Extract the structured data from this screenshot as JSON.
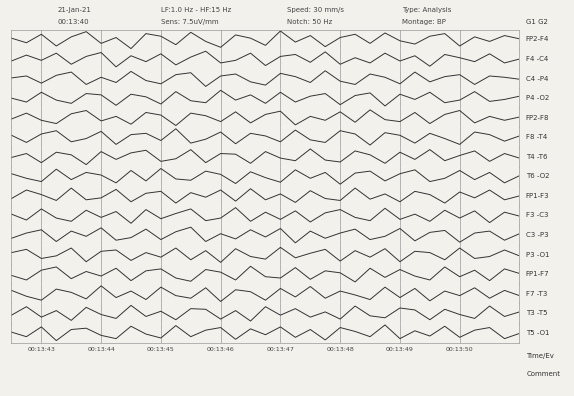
{
  "header": {
    "rows": [
      [
        "21-Jan-21",
        "LF:1.0 Hz - HF:15 Hz",
        "Speed: 30 mm/s",
        "Type: Analysis"
      ],
      [
        "00:13:40",
        "Sens: 7.5uV/mm",
        "Notch: 50 Hz",
        "Montage: BP"
      ]
    ]
  },
  "side_labels": {
    "top": "G1 G2",
    "bottom": [
      "Time/Ev",
      "Comment"
    ]
  },
  "chart_data": {
    "type": "line",
    "grid": true,
    "tick_labels": "x",
    "color": "#333333",
    "x": [
      0,
      0.25,
      0.5,
      0.75,
      1,
      1.25,
      1.5,
      1.75,
      2,
      2.25,
      2.5,
      2.75,
      3,
      3.25,
      3.5,
      3.75,
      4,
      4.25,
      4.5,
      4.75,
      5,
      5.25,
      5.5,
      5.75,
      6,
      6.25,
      6.5,
      6.75,
      7,
      7.25,
      7.5,
      7.75,
      8,
      8.25,
      8.5
    ],
    "xlim": [
      0,
      8.5
    ],
    "xticks": [
      {
        "value": 0.5,
        "label": "00:13:43"
      },
      {
        "value": 1.5,
        "label": "00:13:44"
      },
      {
        "value": 2.5,
        "label": "00:13:45"
      },
      {
        "value": 3.5,
        "label": "00:13:46"
      },
      {
        "value": 4.5,
        "label": "00:13:47"
      },
      {
        "value": 5.5,
        "label": "00:13:48"
      },
      {
        "value": 6.5,
        "label": "00:13:49"
      },
      {
        "value": 7.5,
        "label": "00:13:50"
      }
    ],
    "ylim": [
      -15,
      15
    ],
    "yticks": [],
    "series": [
      {
        "name": "FP2-F4",
        "values": [
          2,
          -5,
          8,
          -10,
          4,
          12,
          -6,
          3,
          -14,
          9,
          5,
          -8,
          11,
          -3,
          -12,
          7,
          2,
          -9,
          13,
          -4,
          6,
          -11,
          3,
          8,
          -6,
          10,
          -2,
          -7,
          5,
          9,
          -10,
          4,
          -3,
          6,
          1
        ]
      },
      {
        "name": "F4 -C4",
        "values": [
          -3,
          6,
          -2,
          9,
          -8,
          4,
          10,
          -12,
          5,
          -4,
          8,
          -9,
          3,
          12,
          -6,
          -2,
          9,
          -10,
          4,
          7,
          -5,
          11,
          -8,
          2,
          -6,
          9,
          -3,
          5,
          -11,
          7,
          2,
          -4,
          8,
          -6,
          0
        ]
      },
      {
        "name": "C4 -P4",
        "values": [
          1,
          4,
          -7,
          5,
          10,
          -9,
          2,
          -6,
          11,
          -3,
          -8,
          6,
          9,
          -12,
          4,
          7,
          -5,
          -10,
          8,
          3,
          -6,
          12,
          -4,
          -9,
          7,
          2,
          -8,
          10,
          -5,
          3,
          6,
          -9,
          4,
          2,
          -1
        ]
      },
      {
        "name": "P4 -O2",
        "values": [
          0,
          -6,
          9,
          -3,
          -8,
          7,
          5,
          -11,
          6,
          2,
          -9,
          10,
          -4,
          -7,
          12,
          -3,
          5,
          -8,
          9,
          -6,
          3,
          7,
          -10,
          4,
          8,
          -12,
          6,
          -2,
          9,
          -7,
          -3,
          10,
          -5,
          -2,
          3
        ]
      },
      {
        "name": "FP2-F8",
        "values": [
          -2,
          7,
          -4,
          -9,
          6,
          11,
          -5,
          2,
          -10,
          8,
          4,
          -12,
          7,
          3,
          -6,
          9,
          -8,
          5,
          10,
          -11,
          2,
          -4,
          9,
          -7,
          12,
          -3,
          -6,
          8,
          -9,
          5,
          11,
          -8,
          2,
          -4,
          1
        ]
      },
      {
        "name": "F8 -T4",
        "values": [
          3,
          -8,
          5,
          10,
          -7,
          -2,
          9,
          -11,
          4,
          6,
          -5,
          13,
          -9,
          -3,
          8,
          -10,
          6,
          2,
          -7,
          11,
          -4,
          -8,
          10,
          5,
          -12,
          7,
          3,
          -9,
          6,
          -2,
          -11,
          8,
          4,
          -6,
          2
        ]
      },
      {
        "name": "T4 -T6",
        "values": [
          -1,
          5,
          -9,
          7,
          3,
          -12,
          8,
          -4,
          6,
          10,
          -7,
          -3,
          11,
          -9,
          5,
          4,
          -10,
          8,
          -2,
          -6,
          12,
          -5,
          -8,
          9,
          3,
          -10,
          7,
          -4,
          11,
          -6,
          2,
          9,
          -7,
          5,
          -2
        ]
      },
      {
        "name": "T6 -O2",
        "values": [
          4,
          -3,
          -8,
          11,
          -5,
          6,
          2,
          -10,
          9,
          -7,
          12,
          -4,
          -6,
          8,
          3,
          -11,
          7,
          -2,
          -9,
          10,
          -3,
          6,
          -12,
          5,
          8,
          -7,
          4,
          10,
          -8,
          -3,
          9,
          -5,
          6,
          -10,
          1
        ]
      },
      {
        "name": "FP1-F3",
        "values": [
          -4,
          9,
          2,
          -7,
          12,
          -6,
          -3,
          10,
          -9,
          4,
          7,
          -11,
          5,
          -2,
          9,
          -8,
          11,
          -6,
          3,
          -10,
          8,
          -4,
          -7,
          12,
          -5,
          3,
          -9,
          7,
          2,
          -11,
          6,
          -3,
          9,
          -6,
          0
        ]
      },
      {
        "name": "F3 -C3",
        "values": [
          2,
          -7,
          10,
          -4,
          -9,
          8,
          -3,
          6,
          -12,
          9,
          -5,
          3,
          10,
          -8,
          -4,
          12,
          -9,
          5,
          -6,
          7,
          -10,
          4,
          9,
          -3,
          -8,
          11,
          -6,
          2,
          -9,
          8,
          -4,
          7,
          -11,
          5,
          -1
        ]
      },
      {
        "name": "C3 -P3",
        "values": [
          -5,
          3,
          8,
          -10,
          6,
          -2,
          11,
          -8,
          -4,
          9,
          -7,
          5,
          12,
          -10,
          2,
          -6,
          8,
          -3,
          10,
          -12,
          6,
          -5,
          3,
          9,
          -7,
          -2,
          10,
          -9,
          4,
          7,
          -11,
          3,
          6,
          -8,
          2
        ]
      },
      {
        "name": "P3 -O1",
        "values": [
          3,
          8,
          -6,
          -2,
          10,
          -11,
          5,
          7,
          -9,
          3,
          -4,
          10,
          -8,
          6,
          -12,
          9,
          -3,
          -7,
          11,
          -5,
          2,
          8,
          -10,
          6,
          -4,
          9,
          -11,
          5,
          3,
          -8,
          10,
          -6,
          -3,
          7,
          -2
        ]
      },
      {
        "name": "FP1-F7",
        "values": [
          -2,
          -9,
          6,
          11,
          -7,
          4,
          -3,
          9,
          -10,
          5,
          8,
          -6,
          -11,
          7,
          3,
          -9,
          12,
          -4,
          -6,
          10,
          -8,
          5,
          2,
          -12,
          9,
          -5,
          7,
          -3,
          -9,
          11,
          -4,
          6,
          -10,
          8,
          1
        ]
      },
      {
        "name": "F7 -T3",
        "values": [
          5,
          -4,
          -10,
          7,
          2,
          -8,
          12,
          -6,
          4,
          -9,
          10,
          -3,
          -7,
          9,
          -12,
          6,
          3,
          -10,
          8,
          -5,
          11,
          -7,
          4,
          -2,
          -9,
          10,
          -6,
          8,
          -11,
          4,
          -3,
          9,
          -7,
          5,
          -3
        ]
      },
      {
        "name": "T3 -T5",
        "values": [
          -3,
          10,
          -6,
          4,
          -11,
          9,
          -2,
          -8,
          12,
          -5,
          3,
          -10,
          7,
          6,
          -9,
          4,
          -12,
          10,
          -3,
          7,
          -6,
          2,
          -9,
          11,
          -4,
          -7,
          8,
          5,
          -10,
          6,
          -2,
          -8,
          11,
          -5,
          2
        ]
      },
      {
        "name": "T5 -O1",
        "values": [
          1,
          -6,
          9,
          -12,
          5,
          7,
          -4,
          -9,
          10,
          -2,
          -8,
          11,
          -6,
          4,
          8,
          -10,
          6,
          -3,
          9,
          -7,
          5,
          -11,
          8,
          2,
          -6,
          12,
          -9,
          3,
          -5,
          10,
          -7,
          4,
          8,
          -9,
          -1
        ]
      }
    ]
  }
}
